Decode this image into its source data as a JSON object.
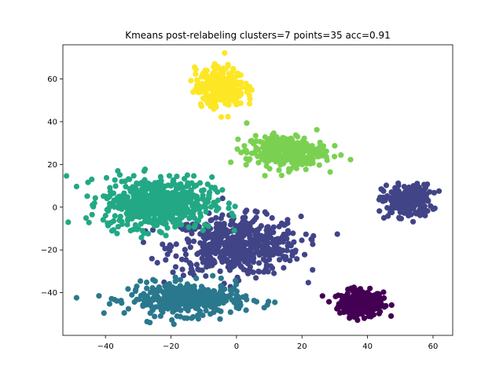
{
  "chart_data": {
    "type": "scatter",
    "title": "Kmeans post-relabeling clusters=7 points=35 acc=0.91",
    "xlabel": "",
    "ylabel": "",
    "xlim": [
      -53,
      66
    ],
    "ylim": [
      -60,
      76
    ],
    "xticks": [
      -40,
      -20,
      0,
      20,
      40,
      60
    ],
    "yticks": [
      -40,
      -20,
      0,
      20,
      40,
      60
    ],
    "grid": false,
    "legend": "none",
    "colormap": "viridis",
    "series": [
      {
        "color": "#440154",
        "center": [
          38,
          -45
        ],
        "spread": [
          4.5,
          4
        ],
        "count": 260,
        "x": [
          38,
          34,
          42,
          36,
          40,
          33,
          44,
          35,
          39,
          41
        ],
        "y": [
          -45,
          -43,
          -47,
          -50,
          -40,
          -48,
          -44,
          -38,
          -52,
          -46
        ]
      },
      {
        "color": "#414487",
        "center": [
          0,
          -18
        ],
        "spread": [
          13,
          9
        ],
        "count": 520,
        "x": [
          -15,
          -8,
          0,
          5,
          10,
          15,
          -5,
          2,
          8,
          -12
        ],
        "y": [
          -15,
          -10,
          -20,
          -25,
          -12,
          -8,
          -30,
          -5,
          -18,
          -22
        ]
      },
      {
        "color": "#414487",
        "center": [
          52,
          3
        ],
        "spread": [
          5,
          5
        ],
        "count": 200,
        "x": [
          48,
          52,
          56,
          50,
          54,
          45,
          58,
          51
        ],
        "y": [
          5,
          8,
          2,
          -2,
          10,
          -5,
          6,
          0
        ]
      },
      {
        "color": "#2a788e",
        "center": [
          -15,
          -43
        ],
        "spread": [
          12,
          5
        ],
        "count": 380,
        "x": [
          -28,
          -20,
          -12,
          -5,
          -18,
          -8,
          -25,
          -15
        ],
        "y": [
          -45,
          -42,
          -47,
          -40,
          -38,
          -50,
          -43,
          -36
        ]
      },
      {
        "color": "#22a884",
        "center": [
          -24,
          2
        ],
        "spread": [
          11,
          8
        ],
        "count": 600,
        "x": [
          -40,
          -35,
          -28,
          -22,
          -15,
          -10,
          -30,
          -20,
          -25,
          -18
        ],
        "y": [
          5,
          12,
          0,
          -5,
          15,
          8,
          -10,
          10,
          3,
          -2
        ]
      },
      {
        "color": "#7ad151",
        "center": [
          15,
          26
        ],
        "spread": [
          8,
          5
        ],
        "count": 300,
        "x": [
          8,
          12,
          15,
          18,
          22,
          10,
          20,
          16
        ],
        "y": [
          28,
          22,
          30,
          25,
          27,
          32,
          20,
          24
        ]
      },
      {
        "color": "#fde725",
        "center": [
          -5,
          56
        ],
        "spread": [
          5,
          6
        ],
        "count": 300,
        "x": [
          -8,
          -5,
          -2,
          -6,
          -4,
          -10,
          0,
          -3
        ],
        "y": [
          60,
          55,
          50,
          65,
          58,
          62,
          48,
          56
        ]
      }
    ]
  }
}
